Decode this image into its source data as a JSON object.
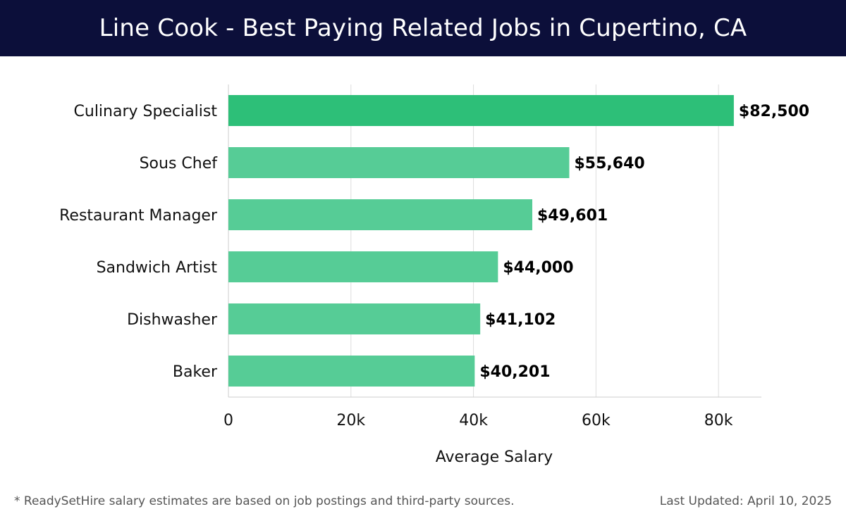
{
  "header": {
    "title": "Line Cook - Best Paying Related Jobs in Cupertino, CA"
  },
  "chart_data": {
    "type": "bar",
    "orientation": "horizontal",
    "title": "Line Cook - Best Paying Related Jobs in Cupertino, CA",
    "xlabel": "Average Salary",
    "ylabel": "",
    "categories": [
      "Culinary Specialist",
      "Sous Chef",
      "Restaurant Manager",
      "Sandwich Artist",
      "Dishwasher",
      "Baker"
    ],
    "values": [
      82500,
      55640,
      49601,
      44000,
      41102,
      40201
    ],
    "value_labels": [
      "$82,500",
      "$55,640",
      "$49,601",
      "$44,000",
      "$41,102",
      "$40,201"
    ],
    "xlim": [
      0,
      87000
    ],
    "xticks": [
      0,
      20000,
      40000,
      60000,
      80000
    ],
    "xtick_labels": [
      "0",
      "20k",
      "40k",
      "60k",
      "80k"
    ],
    "grid": true,
    "colors": {
      "highlight": "#2dbf78",
      "bar": "#56cc96",
      "grid": "#dddddd"
    }
  },
  "footer": {
    "note": "* ReadySetHire salary estimates are based on job postings and third-party sources.",
    "updated": "Last Updated: April 10, 2025"
  }
}
